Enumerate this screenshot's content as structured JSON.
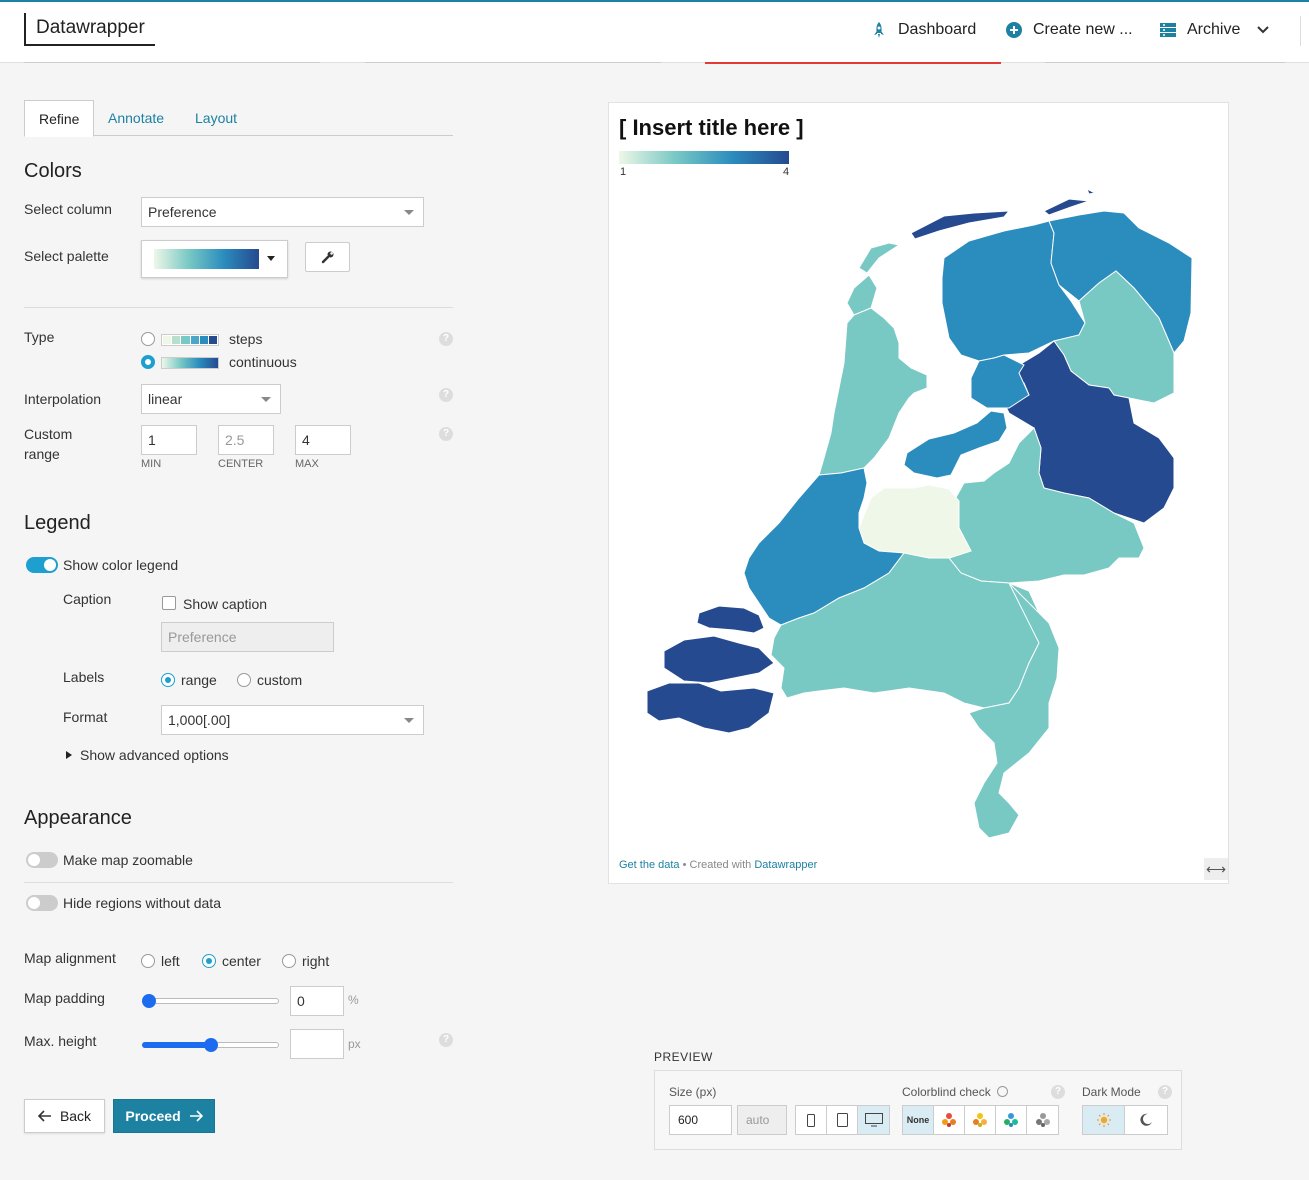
{
  "header": {
    "logo": "Datawrapper",
    "nav": {
      "dashboard": "Dashboard",
      "create_new": "Create new ...",
      "archive": "Archive"
    }
  },
  "tabs": [
    "Refine",
    "Annotate",
    "Layout"
  ],
  "colors": {
    "heading": "Colors",
    "select_column_label": "Select column",
    "select_column_value": "Preference",
    "select_palette_label": "Select palette",
    "type_label": "Type",
    "type_options": [
      "steps",
      "continuous"
    ],
    "type_selected": "continuous",
    "interpolation_label": "Interpolation",
    "interpolation_value": "linear",
    "custom_range_label": "Custom range",
    "range_min": "1",
    "range_center_placeholder": "2.5",
    "range_max": "4",
    "min_caption": "MIN",
    "center_caption": "CENTER",
    "max_caption": "MAX",
    "help_mark": "?"
  },
  "legend": {
    "heading": "Legend",
    "show_color_legend": "Show color legend",
    "show_color_legend_on": true,
    "caption_label": "Caption",
    "show_caption": "Show caption",
    "caption_placeholder": "Preference",
    "labels_label": "Labels",
    "labels_options": [
      "range",
      "custom"
    ],
    "labels_selected": "range",
    "format_label": "Format",
    "format_value": "1,000[.00]",
    "advanced": "Show advanced options"
  },
  "appearance": {
    "heading": "Appearance",
    "zoomable": "Make map zoomable",
    "hide_regions": "Hide regions without data",
    "alignment_label": "Map alignment",
    "alignment_options": [
      "left",
      "center",
      "right"
    ],
    "alignment_selected": "center",
    "padding_label": "Map padding",
    "padding_value": "0",
    "padding_unit": "%",
    "padding_level": 0,
    "max_height_label": "Max. height",
    "max_height_unit": "px",
    "max_height_level": 0.5
  },
  "buttons": {
    "back": "Back",
    "proceed": "Proceed"
  },
  "chart": {
    "title": "[ Insert title here ]",
    "legend_min": "1",
    "legend_max": "4",
    "footer_get_data": "Get the data",
    "footer_sep": " • Created with ",
    "footer_brand": "Datawrapper",
    "colors": {
      "low": "#eef7e8",
      "mid1": "#78c8c4",
      "mid2": "#2b8cbe",
      "high": "#254a8f"
    }
  },
  "preview": {
    "title": "PREVIEW",
    "size_label": "Size (px)",
    "size_value": "600",
    "size_auto": "auto",
    "colorblind_label": "Colorblind check",
    "colorblind_none": "None",
    "dark_mode_label": "Dark Mode"
  }
}
